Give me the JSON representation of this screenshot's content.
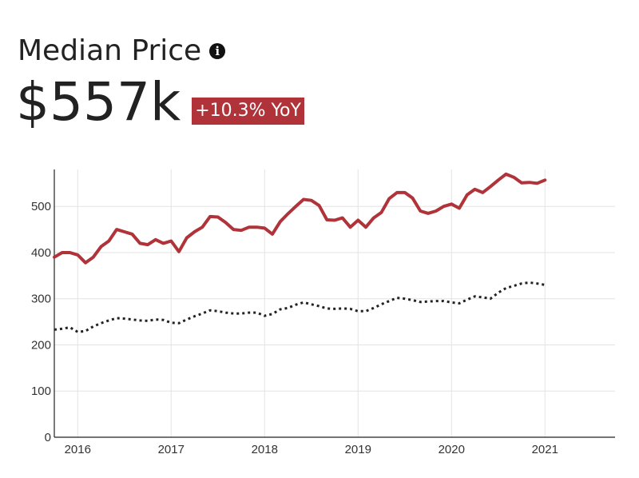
{
  "header": {
    "title": "Median Price",
    "info_icon": "info-icon",
    "value": "$557k",
    "badge": "+10.3% YoY",
    "badge_color": "#b0333a"
  },
  "chart_data": {
    "type": "line",
    "title": "",
    "xlabel": "",
    "ylabel": "",
    "ylim": [
      0,
      580
    ],
    "xlim": [
      "2015-10-01",
      "2021-10-01"
    ],
    "y_ticks": [
      0,
      100,
      200,
      300,
      400,
      500
    ],
    "x_ticks": [
      "2016",
      "2017",
      "2018",
      "2019",
      "2020",
      "2021"
    ],
    "grid": true,
    "series": [
      {
        "style": "solid",
        "color": "#b0333a",
        "points": [
          [
            "2015-10",
            390
          ],
          [
            "2015-11",
            400
          ],
          [
            "2015-12",
            400
          ],
          [
            "2016-01",
            395
          ],
          [
            "2016-02",
            378
          ],
          [
            "2016-03",
            390
          ],
          [
            "2016-04",
            413
          ],
          [
            "2016-05",
            425
          ],
          [
            "2016-06",
            450
          ],
          [
            "2016-07",
            445
          ],
          [
            "2016-08",
            440
          ],
          [
            "2016-09",
            420
          ],
          [
            "2016-10",
            417
          ],
          [
            "2016-11",
            428
          ],
          [
            "2016-12",
            420
          ],
          [
            "2017-01",
            425
          ],
          [
            "2017-02",
            402
          ],
          [
            "2017-03",
            432
          ],
          [
            "2017-04",
            445
          ],
          [
            "2017-05",
            455
          ],
          [
            "2017-06",
            478
          ],
          [
            "2017-07",
            477
          ],
          [
            "2017-08",
            465
          ],
          [
            "2017-09",
            450
          ],
          [
            "2017-10",
            448
          ],
          [
            "2017-11",
            455
          ],
          [
            "2017-12",
            455
          ],
          [
            "2018-01",
            453
          ],
          [
            "2018-02",
            440
          ],
          [
            "2018-03",
            467
          ],
          [
            "2018-04",
            484
          ],
          [
            "2018-05",
            500
          ],
          [
            "2018-06",
            515
          ],
          [
            "2018-07",
            513
          ],
          [
            "2018-08",
            502
          ],
          [
            "2018-09",
            471
          ],
          [
            "2018-10",
            470
          ],
          [
            "2018-11",
            475
          ],
          [
            "2018-12",
            455
          ],
          [
            "2019-01",
            470
          ],
          [
            "2019-02",
            455
          ],
          [
            "2019-03",
            475
          ],
          [
            "2019-04",
            487
          ],
          [
            "2019-05",
            517
          ],
          [
            "2019-06",
            530
          ],
          [
            "2019-07",
            530
          ],
          [
            "2019-08",
            518
          ],
          [
            "2019-09",
            490
          ],
          [
            "2019-10",
            485
          ],
          [
            "2019-11",
            490
          ],
          [
            "2019-12",
            500
          ],
          [
            "2020-01",
            505
          ],
          [
            "2020-02",
            496
          ],
          [
            "2020-03",
            525
          ],
          [
            "2020-04",
            537
          ],
          [
            "2020-05",
            530
          ],
          [
            "2020-06",
            543
          ],
          [
            "2020-07",
            557
          ],
          [
            "2020-08",
            570
          ],
          [
            "2020-09",
            563
          ],
          [
            "2020-10",
            551
          ],
          [
            "2020-11",
            552
          ],
          [
            "2020-12",
            550
          ],
          [
            "2021-01",
            557
          ]
        ]
      },
      {
        "style": "dotted",
        "color": "#222222",
        "points": [
          [
            "2015-10",
            233
          ],
          [
            "2015-11",
            235
          ],
          [
            "2015-12",
            238
          ],
          [
            "2016-01",
            228
          ],
          [
            "2016-02",
            230
          ],
          [
            "2016-03",
            240
          ],
          [
            "2016-04",
            247
          ],
          [
            "2016-05",
            253
          ],
          [
            "2016-06",
            258
          ],
          [
            "2016-07",
            257
          ],
          [
            "2016-08",
            255
          ],
          [
            "2016-09",
            253
          ],
          [
            "2016-10",
            252
          ],
          [
            "2016-11",
            255
          ],
          [
            "2016-12",
            254
          ],
          [
            "2017-01",
            248
          ],
          [
            "2017-02",
            247
          ],
          [
            "2017-03",
            255
          ],
          [
            "2017-04",
            262
          ],
          [
            "2017-05",
            268
          ],
          [
            "2017-06",
            275
          ],
          [
            "2017-07",
            273
          ],
          [
            "2017-08",
            270
          ],
          [
            "2017-09",
            268
          ],
          [
            "2017-10",
            268
          ],
          [
            "2017-11",
            270
          ],
          [
            "2017-12",
            270
          ],
          [
            "2018-01",
            263
          ],
          [
            "2018-02",
            267
          ],
          [
            "2018-03",
            277
          ],
          [
            "2018-04",
            280
          ],
          [
            "2018-05",
            287
          ],
          [
            "2018-06",
            292
          ],
          [
            "2018-07",
            288
          ],
          [
            "2018-08",
            284
          ],
          [
            "2018-09",
            279
          ],
          [
            "2018-10",
            278
          ],
          [
            "2018-11",
            279
          ],
          [
            "2018-12",
            278
          ],
          [
            "2019-01",
            273
          ],
          [
            "2019-02",
            273
          ],
          [
            "2019-03",
            280
          ],
          [
            "2019-04",
            288
          ],
          [
            "2019-05",
            295
          ],
          [
            "2019-06",
            302
          ],
          [
            "2019-07",
            300
          ],
          [
            "2019-08",
            297
          ],
          [
            "2019-09",
            293
          ],
          [
            "2019-10",
            294
          ],
          [
            "2019-11",
            295
          ],
          [
            "2019-12",
            295
          ],
          [
            "2020-01",
            292
          ],
          [
            "2020-02",
            290
          ],
          [
            "2020-03",
            298
          ],
          [
            "2020-04",
            305
          ],
          [
            "2020-05",
            303
          ],
          [
            "2020-06",
            300
          ],
          [
            "2020-07",
            313
          ],
          [
            "2020-08",
            323
          ],
          [
            "2020-09",
            328
          ],
          [
            "2020-10",
            333
          ],
          [
            "2020-11",
            335
          ],
          [
            "2020-12",
            333
          ],
          [
            "2021-01",
            330
          ]
        ]
      }
    ]
  }
}
